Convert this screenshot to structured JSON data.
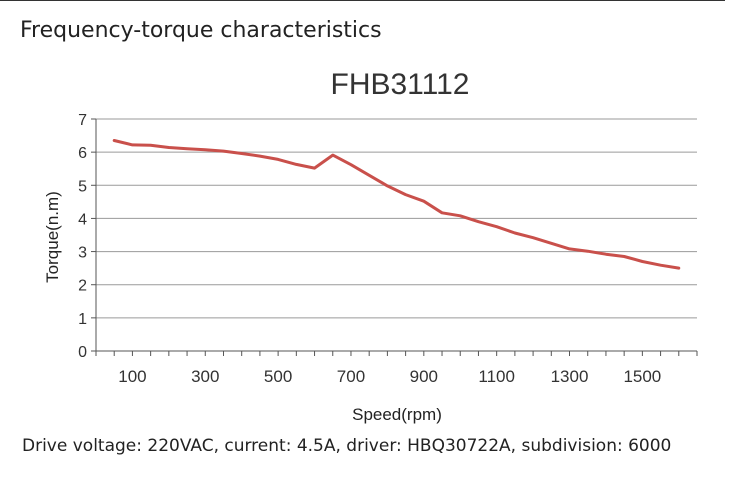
{
  "section_heading": "Frequency-torque characteristics",
  "caption": "Drive voltage: 220VAC, current: 4.5A, driver: HBQ30722A, subdivision: 6000",
  "chart_data": {
    "type": "line",
    "title": "FHB31112",
    "xlabel": "Speed(rpm)",
    "ylabel": "Torque(n.m)",
    "ylim": [
      0,
      7
    ],
    "xlim": [
      0,
      1650
    ],
    "xticks": [
      100,
      300,
      500,
      700,
      900,
      1100,
      1300,
      1500
    ],
    "yticks": [
      0,
      1,
      2,
      3,
      4,
      5,
      6,
      7
    ],
    "grid": "horizontal",
    "legend": "none",
    "series": [
      {
        "color": "#c9504b",
        "x": [
          50,
          100,
          150,
          200,
          250,
          300,
          350,
          400,
          450,
          500,
          550,
          600,
          650,
          700,
          750,
          800,
          850,
          900,
          950,
          1000,
          1050,
          1100,
          1150,
          1200,
          1250,
          1300,
          1350,
          1400,
          1450,
          1500,
          1550,
          1600
        ],
        "y": [
          6.35,
          6.22,
          6.21,
          6.14,
          6.1,
          6.07,
          6.03,
          5.96,
          5.88,
          5.78,
          5.63,
          5.52,
          5.91,
          5.62,
          5.3,
          4.98,
          4.72,
          4.52,
          4.17,
          4.08,
          3.9,
          3.75,
          3.56,
          3.42,
          3.25,
          3.08,
          3.01,
          2.92,
          2.85,
          2.7,
          2.59,
          2.5
        ]
      }
    ]
  }
}
